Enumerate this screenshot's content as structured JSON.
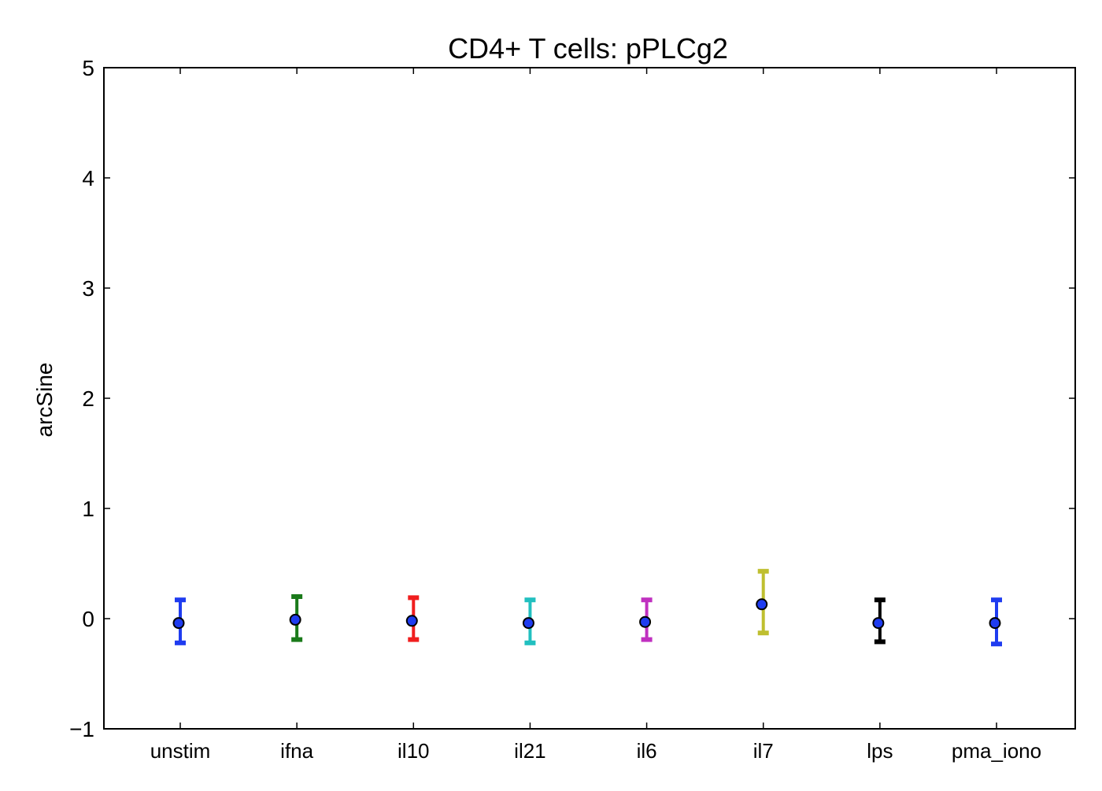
{
  "chart_data": {
    "type": "scatter",
    "title": "CD4+ T cells: pPLCg2",
    "xlabel": "",
    "ylabel": "arcSine",
    "ylim": [
      -1,
      5
    ],
    "yticks": [
      -1,
      0,
      1,
      2,
      3,
      4,
      5
    ],
    "ytick_labels": [
      "−1",
      "0",
      "1",
      "2",
      "3",
      "4",
      "5"
    ],
    "grid": false,
    "categories": [
      "unstim",
      "ifna",
      "il10",
      "il21",
      "il6",
      "il7",
      "lps",
      "pma_iono"
    ],
    "values": [
      -0.04,
      -0.01,
      -0.02,
      -0.04,
      -0.03,
      0.13,
      -0.04,
      -0.04
    ],
    "error_low": [
      -0.22,
      -0.19,
      -0.19,
      -0.22,
      -0.19,
      -0.13,
      -0.21,
      -0.23
    ],
    "error_high": [
      0.17,
      0.2,
      0.19,
      0.17,
      0.17,
      0.43,
      0.17,
      0.17
    ],
    "error_colors": [
      "#1f3cf0",
      "#1a7a1a",
      "#f01e1e",
      "#22c0c0",
      "#c030c0",
      "#bfbf30",
      "#000000",
      "#1f3cf0"
    ],
    "marker_color": "#1f3cf0"
  }
}
